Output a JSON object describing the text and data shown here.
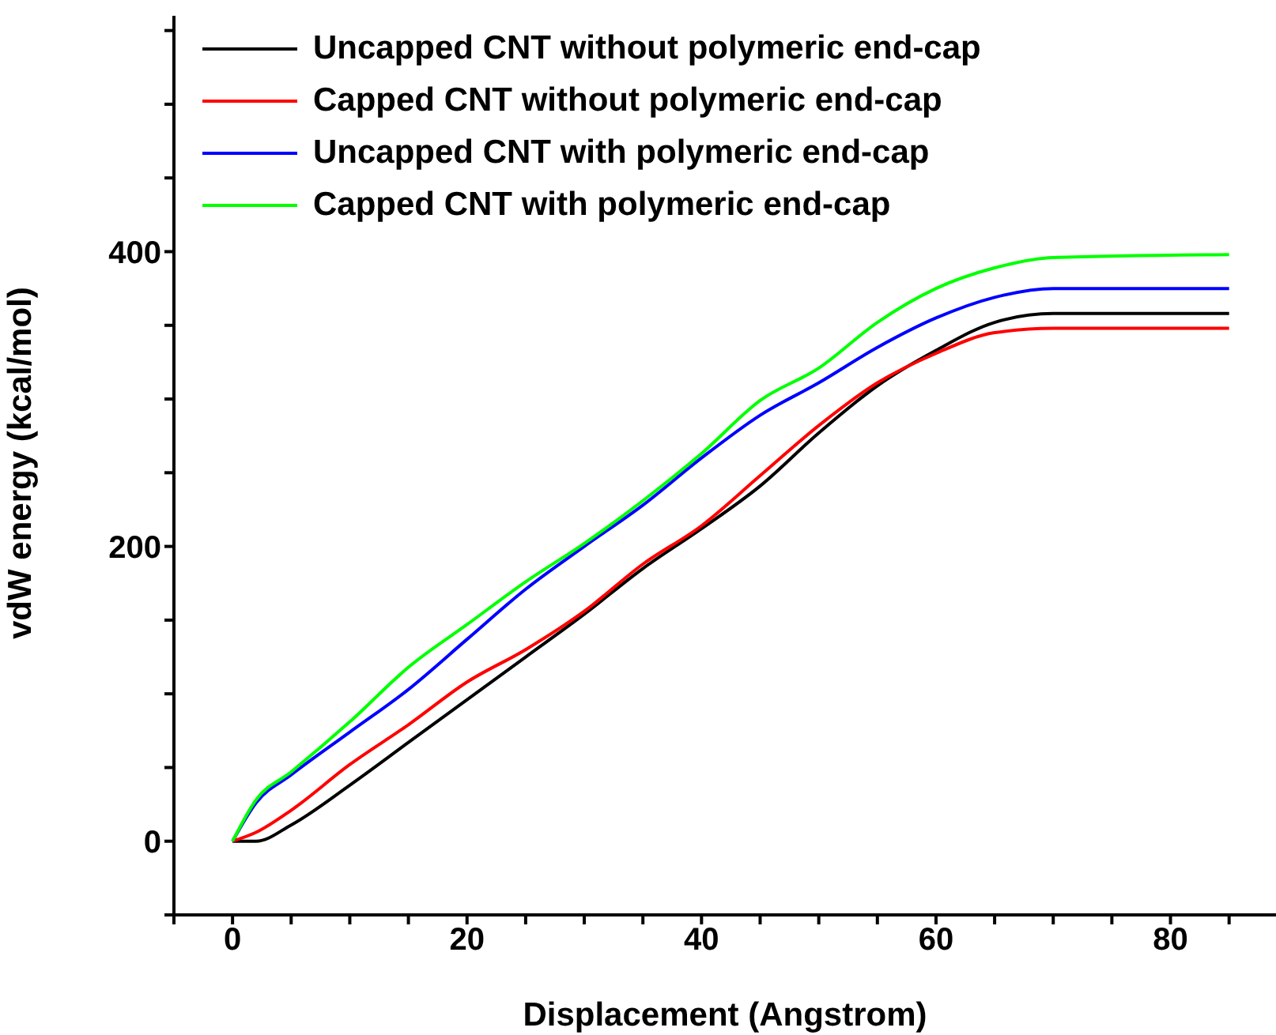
{
  "chart_data": {
    "type": "line",
    "xlabel": "Displacement (Angstrom)",
    "ylabel": "vdW energy (kcal/mol)",
    "xlim": [
      -5,
      89
    ],
    "ylim": [
      -50,
      560
    ],
    "xticks": [
      {
        "value": -5,
        "label": null
      },
      0,
      {
        "value": 5,
        "label": null
      },
      {
        "value": 10,
        "label": null
      },
      {
        "value": 15,
        "label": null
      },
      20,
      {
        "value": 25,
        "label": null
      },
      {
        "value": 30,
        "label": null
      },
      {
        "value": 35,
        "label": null
      },
      40,
      {
        "value": 45,
        "label": null
      },
      {
        "value": 50,
        "label": null
      },
      {
        "value": 55,
        "label": null
      },
      60,
      {
        "value": 65,
        "label": null
      },
      {
        "value": 70,
        "label": null
      },
      {
        "value": 75,
        "label": null
      },
      80,
      {
        "value": 85,
        "label": null
      }
    ],
    "yticks": [
      {
        "value": -50,
        "label": null
      },
      0,
      {
        "value": 50,
        "label": null
      },
      {
        "value": 100,
        "label": null
      },
      {
        "value": 150,
        "label": null
      },
      200,
      {
        "value": 250,
        "label": null
      },
      {
        "value": 300,
        "label": null
      },
      {
        "value": 350,
        "label": null
      },
      400,
      {
        "value": 450,
        "label": null
      },
      {
        "value": 500,
        "label": null
      },
      {
        "value": 550,
        "label": null
      }
    ],
    "legend": "top left",
    "grid": false,
    "marker": "none",
    "line_style": "solid",
    "x": [
      0,
      2,
      5,
      10,
      15,
      20,
      25,
      30,
      35,
      40,
      45,
      50,
      55,
      60,
      65,
      70,
      85
    ],
    "series": [
      {
        "name": "Uncapped CNT without polymeric end-cap",
        "color": "#000000",
        "values": [
          0,
          0,
          11,
          38,
          67,
          96,
          125,
          154,
          185,
          212,
          241,
          277,
          309,
          333,
          352,
          358,
          358
        ]
      },
      {
        "name": "Capped CNT without polymeric end-cap",
        "color": "#ff0000",
        "values": [
          0,
          6,
          21,
          52,
          79,
          108,
          130,
          156,
          188,
          214,
          248,
          282,
          311,
          331,
          345,
          348,
          348
        ]
      },
      {
        "name": "Uncapped CNT with polymeric end-cap",
        "color": "#0000ff",
        "values": [
          0,
          26,
          45,
          74,
          103,
          137,
          171,
          200,
          228,
          260,
          289,
          311,
          335,
          355,
          369,
          375,
          375
        ]
      },
      {
        "name": "Capped CNT with polymeric end-cap",
        "color": "#00ff00",
        "values": [
          0,
          28,
          47,
          81,
          118,
          147,
          176,
          202,
          231,
          263,
          299,
          321,
          352,
          375,
          389,
          396,
          398
        ]
      }
    ]
  }
}
